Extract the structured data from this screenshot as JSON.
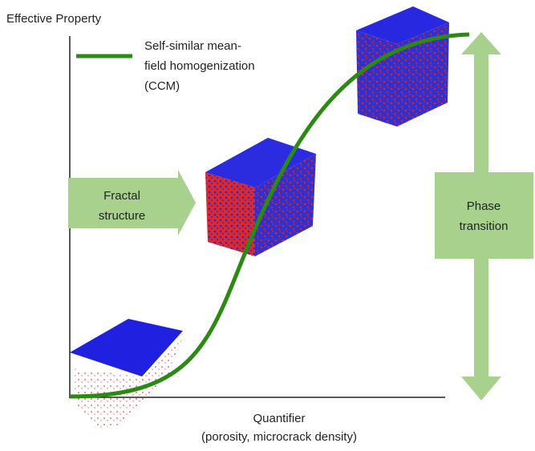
{
  "y_axis_label": "Effective Property",
  "legend": {
    "lines": [
      "Self-similar mean-",
      "field homogenization",
      "(CCM)"
    ]
  },
  "fractal_label": {
    "lines": [
      "Fractal",
      "structure"
    ]
  },
  "phase_label": {
    "lines": [
      "Phase",
      "transition"
    ]
  },
  "x_axis_label": {
    "lines": [
      "Quantifier",
      "(porosity, microcrack density)"
    ]
  }
}
